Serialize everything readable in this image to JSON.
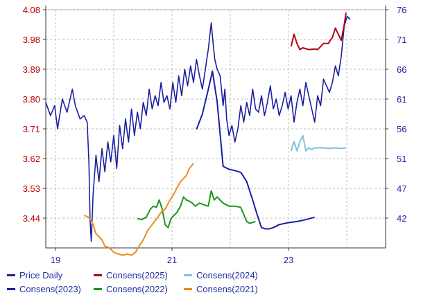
{
  "chart_data": {
    "type": "line",
    "title": "",
    "xlabel": "",
    "ylabel": "",
    "x_ticks": [
      "19",
      "21",
      "23"
    ],
    "x_domain": [
      2019.0,
      2024.75
    ],
    "left_axis": {
      "ticks": [
        "4.08",
        "3.98",
        "3.89",
        "3.80",
        "3.71",
        "3.62",
        "3.53",
        "3.44"
      ],
      "range": [
        3.35,
        4.08
      ]
    },
    "right_axis": {
      "ticks": [
        "76",
        "71",
        "66",
        "61",
        "56",
        "51",
        "47",
        "42"
      ],
      "range": [
        37,
        76
      ]
    },
    "grid": true,
    "legend_position": "bottom",
    "colors": {
      "price": "#1a1fa0",
      "consens_2023": "#1a1fa0",
      "consens_2025": "#b00010",
      "consens_2024": "#7ec3e0",
      "consens_2022": "#17981c",
      "consens_2021": "#f08a20",
      "axis_text_left": "#c00000",
      "axis_text_right": "#1a1fa0",
      "axis_text_x": "#1a1fa0"
    },
    "series": [
      {
        "name": "Price Daily",
        "axis": "left",
        "x": [
          2019.0,
          2019.08,
          2019.15,
          2019.2,
          2019.28,
          2019.36,
          2019.45,
          2019.5,
          2019.58,
          2019.65,
          2019.7,
          2019.73,
          2019.75,
          2019.77,
          2019.8,
          2019.85,
          2019.9,
          2019.95,
          2020.0,
          2020.05,
          2020.1,
          2020.15,
          2020.2,
          2020.25,
          2020.3,
          2020.35,
          2020.4,
          2020.45,
          2020.5,
          2020.55,
          2020.6,
          2020.65,
          2020.7,
          2020.75,
          2020.8,
          2020.85,
          2020.9,
          2020.95,
          2021.0,
          2021.05,
          2021.1,
          2021.15,
          2021.2,
          2021.25,
          2021.3,
          2021.35,
          2021.4,
          2021.45,
          2021.5,
          2021.55,
          2021.6,
          2021.65,
          2021.7,
          2021.75,
          2021.8,
          2021.83,
          2021.86,
          2021.9,
          2021.95,
          2022.0,
          2022.03,
          2022.06,
          2022.1,
          2022.15,
          2022.2,
          2022.25,
          2022.3,
          2022.35,
          2022.4,
          2022.45,
          2022.5,
          2022.55,
          2022.6,
          2022.65,
          2022.7,
          2022.75,
          2022.8,
          2022.85,
          2022.9,
          2022.95,
          2023.0,
          2023.05,
          2023.1,
          2023.15,
          2023.2,
          2023.25,
          2023.3,
          2023.35,
          2023.4,
          2023.45,
          2023.5,
          2023.55,
          2023.6,
          2023.65,
          2023.7,
          2023.75,
          2023.8,
          2023.85,
          2023.9,
          2023.95,
          2024.0,
          2024.05,
          2024.1,
          2024.15
        ],
        "values": [
          3.8,
          3.76,
          3.79,
          3.72,
          3.81,
          3.77,
          3.84,
          3.79,
          3.75,
          3.76,
          3.74,
          3.62,
          3.44,
          3.38,
          3.52,
          3.64,
          3.56,
          3.66,
          3.59,
          3.68,
          3.62,
          3.7,
          3.6,
          3.73,
          3.66,
          3.75,
          3.68,
          3.78,
          3.7,
          3.77,
          3.72,
          3.8,
          3.76,
          3.84,
          3.78,
          3.82,
          3.79,
          3.86,
          3.8,
          3.82,
          3.78,
          3.86,
          3.8,
          3.88,
          3.82,
          3.9,
          3.85,
          3.91,
          3.86,
          3.93,
          3.88,
          3.84,
          3.9,
          3.96,
          4.04,
          3.98,
          3.93,
          3.9,
          3.88,
          3.79,
          3.84,
          3.75,
          3.7,
          3.73,
          3.68,
          3.72,
          3.79,
          3.74,
          3.8,
          3.76,
          3.84,
          3.78,
          3.77,
          3.82,
          3.76,
          3.8,
          3.85,
          3.78,
          3.81,
          3.76,
          3.79,
          3.83,
          3.78,
          3.82,
          3.74,
          3.8,
          3.84,
          3.79,
          3.86,
          3.82,
          3.78,
          3.74,
          3.82,
          3.79,
          3.87,
          3.85,
          3.83,
          3.86,
          3.91,
          3.88,
          3.94,
          4.03,
          4.06,
          4.05
        ]
      },
      {
        "name": "Consens(2023)",
        "axis": "right",
        "x": [
          2021.55,
          2021.65,
          2021.75,
          2021.82,
          2021.9,
          2022.0,
          2022.1,
          2022.2,
          2022.3,
          2022.4,
          2022.5,
          2022.58,
          2022.65,
          2022.72,
          2022.78,
          2022.85,
          2022.95,
          2023.1,
          2023.25,
          2023.4,
          2023.55
        ],
        "values": [
          56.5,
          59.0,
          63.0,
          66.0,
          61.0,
          50.5,
          50.0,
          49.8,
          49.5,
          48.0,
          45.0,
          42.5,
          40.5,
          40.3,
          40.3,
          40.5,
          41.0,
          41.3,
          41.5,
          41.8,
          42.2
        ]
      },
      {
        "name": "Consens(2025)",
        "axis": "right",
        "x": [
          2023.15,
          2023.2,
          2023.25,
          2023.3,
          2023.35,
          2023.45,
          2023.55,
          2023.6,
          2023.65,
          2023.7,
          2023.78,
          2023.85,
          2023.9,
          2023.95,
          2024.0,
          2024.05,
          2024.08
        ],
        "values": [
          70.0,
          72.0,
          70.5,
          69.5,
          69.8,
          69.5,
          69.6,
          69.5,
          70.0,
          70.5,
          70.5,
          71.5,
          73.0,
          72.0,
          71.0,
          73.5,
          75.5
        ]
      },
      {
        "name": "Consens(2024)",
        "axis": "right",
        "x": [
          2023.15,
          2023.2,
          2023.25,
          2023.3,
          2023.35,
          2023.4,
          2023.45,
          2023.5,
          2023.55,
          2023.6,
          2023.7,
          2023.8,
          2023.9,
          2024.0,
          2024.08
        ],
        "values": [
          53.0,
          54.5,
          53.0,
          54.5,
          55.5,
          53.0,
          53.5,
          53.2,
          53.5,
          53.5,
          53.5,
          53.4,
          53.5,
          53.4,
          53.5
        ]
      },
      {
        "name": "Consens(2022)",
        "axis": "right",
        "x": [
          2020.55,
          2020.62,
          2020.7,
          2020.77,
          2020.82,
          2020.87,
          2020.92,
          2020.97,
          2021.02,
          2021.07,
          2021.12,
          2021.17,
          2021.22,
          2021.28,
          2021.33,
          2021.38,
          2021.43,
          2021.48,
          2021.53,
          2021.6,
          2021.68,
          2021.75,
          2021.8,
          2021.85,
          2021.9,
          2022.0,
          2022.1,
          2022.2,
          2022.3,
          2022.4,
          2022.45,
          2022.55
        ],
        "values": [
          42.0,
          41.8,
          42.2,
          43.5,
          44.0,
          43.8,
          45.0,
          43.5,
          41.0,
          40.5,
          42.0,
          42.5,
          43.0,
          44.0,
          45.5,
          45.0,
          44.8,
          44.5,
          44.0,
          44.5,
          44.2,
          44.0,
          46.5,
          45.0,
          45.5,
          44.5,
          44.0,
          44.0,
          43.8,
          41.5,
          41.2,
          41.5
        ]
      },
      {
        "name": "Consens(2021)",
        "axis": "right",
        "x": [
          2019.65,
          2019.7,
          2019.75,
          2019.8,
          2019.85,
          2019.9,
          2019.95,
          2020.0,
          2020.05,
          2020.1,
          2020.15,
          2020.2,
          2020.3,
          2020.38,
          2020.45,
          2020.52,
          2020.58,
          2020.65,
          2020.72,
          2020.8,
          2020.88,
          2020.95,
          2021.02,
          2021.1,
          2021.17,
          2021.22,
          2021.28,
          2021.33,
          2021.38,
          2021.42,
          2021.46,
          2021.5
        ],
        "values": [
          42.5,
          42.3,
          42.0,
          41.0,
          39.5,
          39.0,
          38.5,
          37.5,
          37.3,
          37.0,
          36.5,
          36.3,
          36.0,
          36.2,
          36.0,
          36.5,
          37.5,
          38.5,
          40.0,
          41.0,
          42.0,
          43.0,
          43.5,
          45.0,
          46.0,
          47.0,
          48.0,
          48.5,
          49.0,
          50.0,
          50.5,
          51.0
        ]
      }
    ],
    "legend": [
      {
        "label": "Price Daily",
        "color": "#1a1fa0"
      },
      {
        "label": "Consens(2025)",
        "color": "#b00010"
      },
      {
        "label": "Consens(2024)",
        "color": "#7ec3e0"
      },
      {
        "label": "Consens(2023)",
        "color": "#1a1fa0"
      },
      {
        "label": "Consens(2022)",
        "color": "#17981c"
      },
      {
        "label": "Consens(2021)",
        "color": "#f08a20"
      }
    ]
  }
}
